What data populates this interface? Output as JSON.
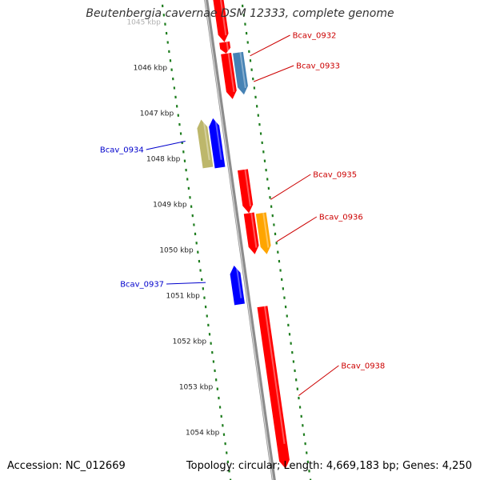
{
  "title": "Beutenbergia cavernae DSM 12333, complete genome",
  "footer": {
    "accession": "Accession: NC_012669",
    "summary": "Topology: circular; Length: 4,669,183 bp; Genes: 4,250"
  },
  "colors": {
    "backbone": "#8c8c8c",
    "tick_track": "#1e7d1e",
    "label_forward": "#cc0000",
    "label_reverse": "#0000cc"
  },
  "scale_labels": [
    {
      "label": "1045 kbp",
      "kbp": 1045,
      "faded": true
    },
    {
      "label": "1046 kbp",
      "kbp": 1046
    },
    {
      "label": "1047 kbp",
      "kbp": 1047
    },
    {
      "label": "1048 kbp",
      "kbp": 1048
    },
    {
      "label": "1049 kbp",
      "kbp": 1049
    },
    {
      "label": "1050 kbp",
      "kbp": 1050
    },
    {
      "label": "1051 kbp",
      "kbp": 1051
    },
    {
      "label": "1052 kbp",
      "kbp": 1052
    },
    {
      "label": "1053 kbp",
      "kbp": 1053
    },
    {
      "label": "1054 kbp",
      "kbp": 1054
    }
  ],
  "genes": [
    {
      "label": "",
      "start_kbp": 1044.5,
      "end_kbp": 1045.45,
      "strand": "forward",
      "track": "cds",
      "color": "#ff0000"
    },
    {
      "label": "Bcav_0932",
      "start_kbp": 1045.45,
      "end_kbp": 1045.7,
      "strand": "forward",
      "track": "cds",
      "color": "#ff0000"
    },
    {
      "label": "",
      "start_kbp": 1045.7,
      "end_kbp": 1046.7,
      "strand": "forward",
      "track": "cds",
      "color": "#ff0000"
    },
    {
      "label": "Bcav_0933",
      "start_kbp": 1045.68,
      "end_kbp": 1046.6,
      "strand": "forward",
      "track": "feature",
      "color": "#4682b4"
    },
    {
      "label": "Bcav_0934",
      "start_kbp": 1047.15,
      "end_kbp": 1048.2,
      "strand": "reverse",
      "track": "feature",
      "color": "#bdb76b"
    },
    {
      "label": "",
      "start_kbp": 1047.12,
      "end_kbp": 1048.2,
      "strand": "reverse",
      "track": "cds",
      "color": "#0000ff"
    },
    {
      "label": "Bcav_0935",
      "start_kbp": 1048.25,
      "end_kbp": 1049.2,
      "strand": "forward",
      "track": "cds",
      "color": "#ff0000"
    },
    {
      "label": "",
      "start_kbp": 1049.2,
      "end_kbp": 1050.1,
      "strand": "forward",
      "track": "cds",
      "color": "#ff0000"
    },
    {
      "label": "Bcav_0936",
      "start_kbp": 1049.2,
      "end_kbp": 1050.1,
      "strand": "forward",
      "track": "feature",
      "color": "#ffa500"
    },
    {
      "label": "Bcav_0937",
      "start_kbp": 1050.35,
      "end_kbp": 1051.2,
      "strand": "reverse",
      "track": "cds",
      "color": "#0000ff"
    },
    {
      "label": "Bcav_0938",
      "start_kbp": 1051.25,
      "end_kbp": 1054.8,
      "strand": "forward",
      "track": "cds",
      "color": "#ff0000"
    }
  ]
}
